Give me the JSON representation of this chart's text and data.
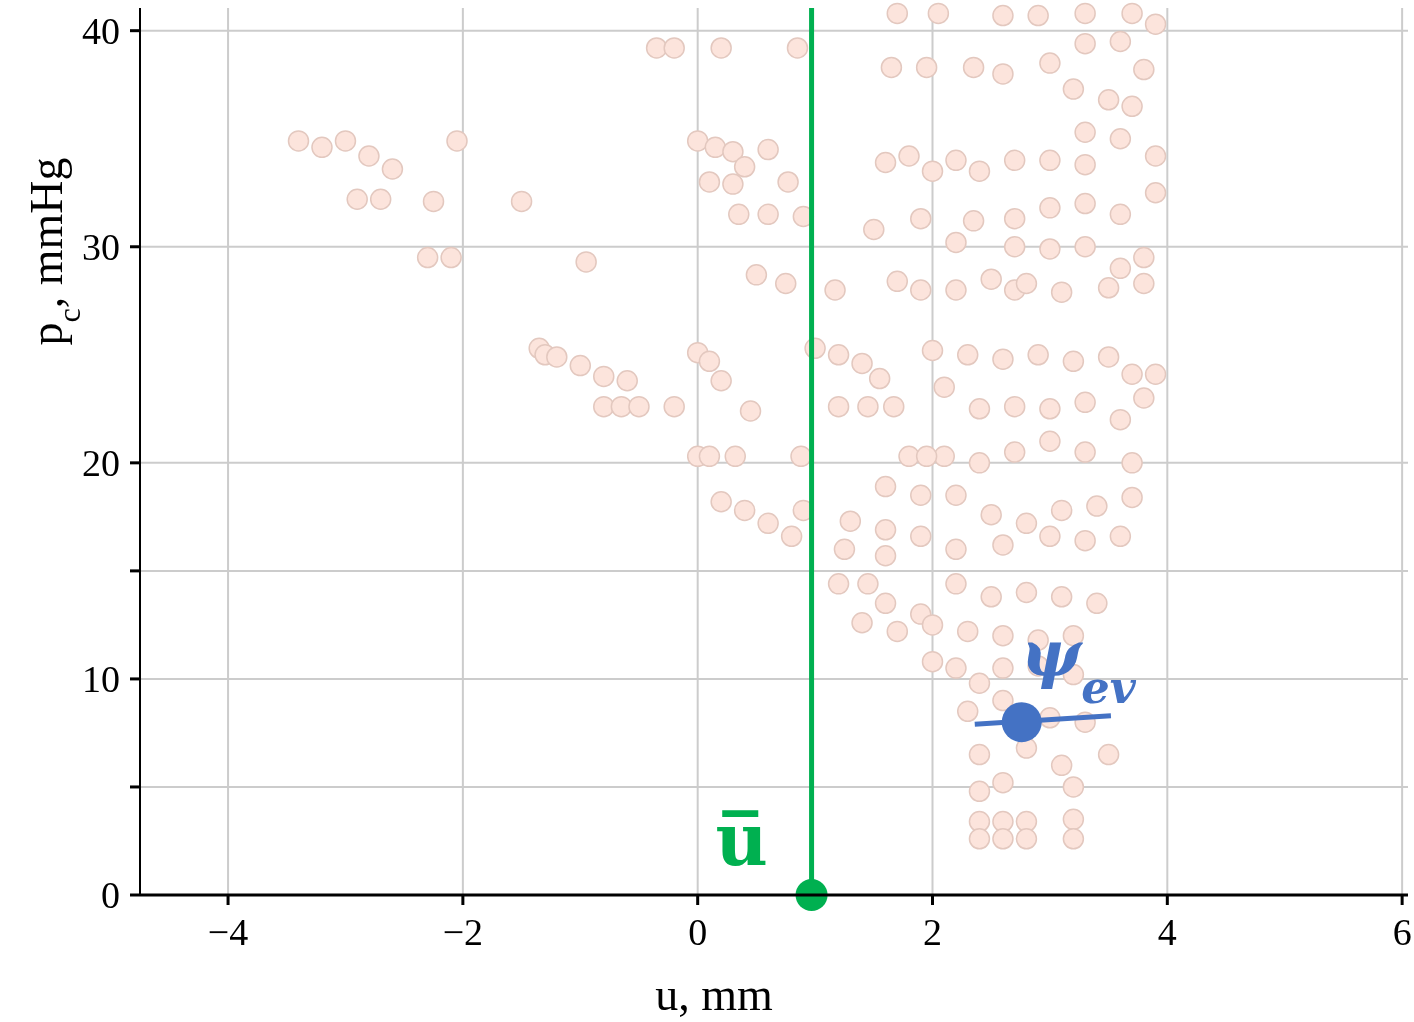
{
  "chart_data": {
    "type": "scatter",
    "xlabel": "u, mm",
    "ylabel": "p$_{c}$, mmHg",
    "xlim": [
      -4.75,
      6.05
    ],
    "ylim": [
      0,
      41.05
    ],
    "xticks": [
      {
        "value": -4,
        "label": "−4"
      },
      {
        "value": -2,
        "label": "−2"
      },
      0,
      2,
      4,
      6
    ],
    "yticks": [
      0,
      {
        "value": 5,
        "label": null
      },
      10,
      {
        "value": 15,
        "label": null
      },
      20,
      30,
      40
    ],
    "grid": true,
    "marker": "circle",
    "ref_lines": [
      {
        "axis": "x",
        "value": 0.97,
        "label": "u̅",
        "color": "#00b050"
      }
    ],
    "series": [
      {
        "color": "#fce4dc",
        "x": [
          -3.4,
          -3.2,
          -3.0,
          -2.8,
          -2.6,
          -2.05,
          -2.9,
          -2.7,
          -2.25,
          -1.5,
          -2.3,
          -2.1,
          -0.95,
          -1.35,
          -1.3,
          -1.2,
          -1.0,
          -0.8,
          -0.6,
          -0.8,
          -0.65,
          -0.5,
          -0.2,
          0.45,
          0.0,
          0.1,
          0.2,
          0.0,
          0.1,
          0.32,
          0.88,
          0.2,
          0.4,
          0.6,
          0.8,
          0.9,
          1.25,
          -0.35,
          -0.2,
          0.2,
          0.85,
          0.0,
          0.15,
          0.3,
          0.4,
          0.1,
          0.3,
          0.6,
          0.77,
          0.35,
          0.6,
          0.9,
          0.5,
          0.75,
          1.17,
          1.0,
          1.2,
          1.4,
          1.55,
          1.2,
          1.45,
          1.67,
          1.7,
          2.05,
          1.65,
          1.95,
          2.35,
          1.6,
          1.8,
          2.0,
          2.2,
          2.4,
          1.5,
          1.9,
          2.2,
          2.35,
          1.7,
          1.9,
          2.2,
          2.5,
          2.7,
          2.6,
          2.9,
          3.3,
          3.7,
          3.9,
          2.6,
          3.0,
          3.3,
          3.6,
          3.8,
          3.2,
          3.5,
          3.7,
          3.3,
          3.6,
          3.9,
          2.7,
          3.0,
          3.3,
          2.7,
          3.0,
          3.3,
          3.6,
          3.9,
          2.7,
          3.0,
          3.3,
          3.6,
          3.8,
          2.8,
          3.1,
          3.5,
          3.8,
          2.0,
          2.3,
          2.6,
          2.9,
          3.2,
          3.5,
          3.7,
          3.9,
          2.1,
          2.4,
          2.7,
          3.0,
          3.3,
          3.6,
          3.8,
          2.1,
          2.4,
          2.7,
          3.0,
          3.3,
          3.7,
          1.8,
          1.95,
          1.6,
          1.9,
          2.2,
          2.5,
          2.8,
          3.1,
          3.4,
          3.7,
          1.6,
          1.9,
          2.2,
          2.6,
          3.0,
          3.3,
          3.6,
          1.6,
          1.3,
          1.2,
          1.45,
          1.6,
          1.9,
          2.2,
          2.5,
          2.8,
          3.1,
          3.4,
          1.4,
          1.7,
          2.0,
          2.3,
          2.6,
          2.9,
          3.2,
          2.0,
          2.2,
          2.4,
          2.6,
          2.9,
          3.2,
          2.3,
          2.6,
          3.0,
          3.3,
          3.5,
          2.4,
          2.6,
          2.8,
          3.1,
          3.2,
          2.4,
          2.4,
          2.6,
          2.8,
          2.4,
          2.6,
          2.8,
          3.2,
          3.2
        ],
        "values": [
          34.9,
          34.6,
          34.9,
          34.2,
          33.6,
          34.9,
          32.2,
          32.2,
          32.1,
          32.1,
          29.5,
          29.5,
          29.3,
          25.3,
          25.0,
          24.9,
          24.5,
          24.0,
          23.8,
          22.6,
          22.6,
          22.6,
          22.6,
          22.4,
          25.1,
          24.7,
          23.8,
          20.3,
          20.3,
          20.3,
          20.3,
          18.2,
          17.8,
          17.2,
          16.6,
          17.8,
          16.0,
          39.2,
          39.2,
          39.2,
          39.2,
          34.9,
          34.6,
          34.4,
          33.7,
          33.0,
          32.9,
          34.5,
          33.0,
          31.5,
          31.5,
          31.4,
          28.7,
          28.3,
          28.0,
          25.3,
          25.0,
          24.6,
          23.9,
          22.6,
          22.6,
          22.6,
          40.8,
          40.8,
          38.3,
          38.3,
          38.3,
          33.9,
          34.2,
          33.5,
          34.0,
          33.5,
          30.8,
          31.3,
          30.2,
          31.2,
          28.4,
          28.0,
          28.0,
          28.5,
          28.0,
          40.7,
          40.7,
          40.8,
          40.8,
          40.3,
          38.0,
          38.5,
          39.4,
          39.5,
          38.2,
          37.3,
          36.8,
          36.5,
          35.3,
          35.0,
          34.2,
          34.0,
          34.0,
          33.8,
          31.3,
          31.8,
          32.0,
          31.5,
          32.5,
          30.0,
          29.9,
          30.0,
          29.0,
          29.5,
          28.3,
          27.9,
          28.1,
          28.3,
          25.2,
          25.0,
          24.8,
          25.0,
          24.7,
          24.9,
          24.1,
          24.1,
          23.5,
          22.5,
          22.6,
          22.5,
          22.8,
          22.0,
          23.0,
          20.3,
          20.0,
          20.5,
          21.0,
          20.5,
          20.0,
          20.3,
          20.3,
          18.9,
          18.5,
          18.5,
          17.6,
          17.2,
          17.8,
          18.0,
          18.4,
          16.9,
          16.6,
          16.0,
          16.2,
          16.6,
          16.4,
          16.6,
          15.7,
          17.3,
          14.4,
          14.4,
          13.5,
          13.0,
          14.4,
          13.8,
          14.0,
          13.8,
          13.5,
          12.6,
          12.2,
          12.5,
          12.2,
          12.0,
          11.8,
          12.0,
          10.8,
          10.5,
          9.8,
          10.5,
          10.6,
          10.2,
          8.5,
          9.0,
          8.2,
          8.0,
          6.5,
          6.5,
          5.2,
          6.8,
          6.0,
          5.0,
          4.8,
          3.4,
          3.4,
          3.4,
          2.6,
          2.6,
          2.6,
          3.5,
          2.6
        ]
      },
      {
        "type": "line",
        "name": "ψ$_{ev}$",
        "color": "#4472c4",
        "marker": "none",
        "x": [
          2.36,
          3.52
        ],
        "values": [
          7.9,
          8.3
        ]
      },
      {
        "type": "scatter",
        "color": "#4472c4",
        "x": [
          2.76
        ],
        "values": [
          8.0
        ]
      },
      {
        "type": "scatter",
        "color": "#00b050",
        "x": [
          0.97
        ],
        "values": [
          0
        ]
      }
    ]
  }
}
